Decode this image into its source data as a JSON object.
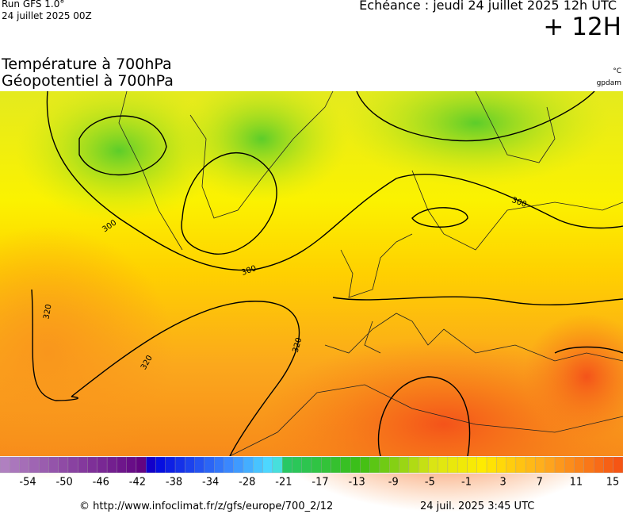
{
  "header": {
    "run": "Run GFS 1.0°",
    "date": "24 juillet 2025 00Z",
    "echeance": "Echéance : jeudi 24 juillet 2025 12h UTC",
    "lead": "+ 12H"
  },
  "titles": {
    "line1": "Température à 700hPa",
    "line2": "Géopotentiel à 700hPa",
    "unit_temp": "°C",
    "unit_geo": "gpdam"
  },
  "map": {
    "contour_labels": [
      "300",
      "300",
      "300",
      "320",
      "320",
      "320"
    ]
  },
  "colorbar": {
    "labels": [
      -54,
      -50,
      -46,
      -42,
      -38,
      -34,
      -28,
      -21,
      -17,
      -13,
      -9,
      -5,
      -1,
      3,
      7,
      11,
      15
    ]
  },
  "footer": {
    "url": "© http://www.infoclimat.fr/z/gfs/europe/700_2/12",
    "time": "24 juil. 2025  3:45 UTC"
  }
}
